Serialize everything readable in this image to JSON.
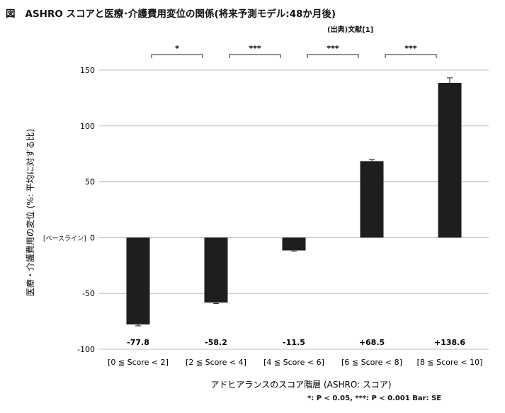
{
  "figure_label": "図",
  "title": "ASHRO スコアと医療･介護費用変位の関係(将来予測モデル:48か月後)",
  "source": "(出典)文献[1]",
  "footnote": "*: P < 0.05, ***: P < 0.001  Bar: SE",
  "chart_data": {
    "type": "bar",
    "xlabel": "アドヒアランスのスコア階層 (ASHRO: スコア)",
    "ylabel": "医療・介護費用の変位 (%: 平均に対する比)",
    "ylim": [
      -100,
      150
    ],
    "yticks": [
      150,
      100,
      50,
      0,
      -50,
      -100
    ],
    "baseline_label": "[ベースライン]",
    "grid": true,
    "legend": "none",
    "bar_color": "#1e1e1e",
    "categories": [
      "[0 ≦ Score < 2]",
      "[2 ≦ Score < 4]",
      "[4 ≦ Score < 6]",
      "[6 ≦ Score < 8]",
      "[8 ≦ Score < 10]"
    ],
    "values": [
      -77.8,
      -58.2,
      -11.5,
      68.5,
      138.6
    ],
    "value_labels": [
      "-77.8",
      "-58.2",
      "-11.5",
      "+68.5",
      "+138.6"
    ],
    "errors": [
      1.2,
      0.8,
      0.6,
      1.5,
      4.5
    ],
    "significance": [
      {
        "between": [
          0,
          1
        ],
        "label": "*"
      },
      {
        "between": [
          1,
          2
        ],
        "label": "***"
      },
      {
        "between": [
          2,
          3
        ],
        "label": "***"
      },
      {
        "between": [
          3,
          4
        ],
        "label": "***"
      }
    ]
  }
}
